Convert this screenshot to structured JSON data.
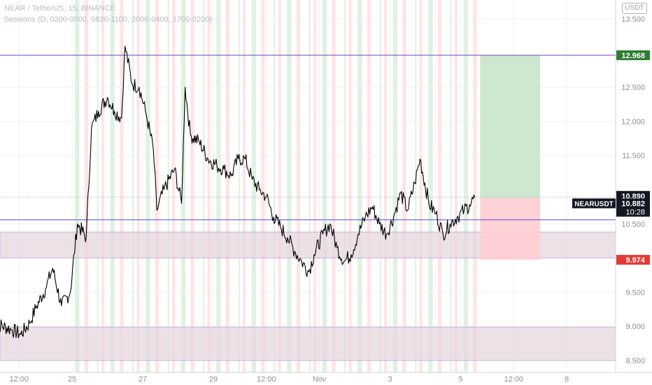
{
  "header": {
    "symbol_line": "NEAR / TetherUS, 15, BINANCE",
    "sessions_line": "Sessions (D, 0200-0500, 0830-1100, 2000-0400, 1700-0200)"
  },
  "currency_button": "USDT",
  "colors": {
    "candle": "#000000",
    "level_line": "#7e57c2",
    "zone_fill": "#e8d7e0",
    "profit_fill": "#c8e6c9",
    "loss_fill": "#ffcdd2",
    "target_tag": "#2e7d32",
    "stop_tag": "#e53935",
    "session_green": "#c8e6c9",
    "session_red": "#ffcdd2",
    "grid": "#eef0f3"
  },
  "chart_data": {
    "type": "line",
    "title": "NEAR / TetherUS, 15, BINANCE",
    "x_range_days": [
      -0.2,
      14.0
    ],
    "ylim": [
      8.38,
      13.6
    ],
    "y_scale": "linear",
    "grid": true,
    "x_tick_labels": [
      {
        "day": 0.5,
        "label": "12:00"
      },
      {
        "day": 2,
        "label": "25"
      },
      {
        "day": 4,
        "label": "27"
      },
      {
        "day": 6,
        "label": "29"
      },
      {
        "day": 7.5,
        "label": "12:00"
      },
      {
        "day": 9,
        "label": "Nov"
      },
      {
        "day": 11,
        "label": "3"
      },
      {
        "day": 13,
        "label": "5"
      },
      {
        "day": 14.5,
        "label": "12:00"
      },
      {
        "day": 16,
        "label": "8"
      }
    ],
    "y_ticks": [
      13.5,
      12.5,
      12.0,
      11.5,
      10.5,
      9.5,
      9.0,
      8.5
    ],
    "y_tick_labels": [
      "13.500",
      "12.500",
      "12.000",
      "11.500",
      "10.500",
      "9.500",
      "9.000",
      "8.500"
    ],
    "price_path": [
      [
        -0.2,
        9.05
      ],
      [
        0.3,
        8.95
      ],
      [
        0.55,
        8.88
      ],
      [
        0.8,
        9.05
      ],
      [
        1.0,
        9.3
      ],
      [
        1.25,
        9.55
      ],
      [
        1.45,
        9.85
      ],
      [
        1.7,
        9.3
      ],
      [
        1.95,
        9.5
      ],
      [
        2.15,
        10.5
      ],
      [
        2.4,
        10.3
      ],
      [
        2.55,
        11.9
      ],
      [
        2.75,
        12.15
      ],
      [
        3.0,
        12.35
      ],
      [
        3.2,
        12.15
      ],
      [
        3.4,
        12.05
      ],
      [
        3.5,
        13.1
      ],
      [
        3.7,
        12.55
      ],
      [
        3.9,
        12.5
      ],
      [
        4.1,
        12.1
      ],
      [
        4.3,
        11.6
      ],
      [
        4.4,
        10.7
      ],
      [
        4.6,
        11.0
      ],
      [
        4.9,
        11.3
      ],
      [
        5.1,
        10.8
      ],
      [
        5.2,
        12.5
      ],
      [
        5.35,
        11.8
      ],
      [
        5.6,
        11.7
      ],
      [
        5.85,
        11.45
      ],
      [
        6.1,
        11.35
      ],
      [
        6.3,
        11.3
      ],
      [
        6.5,
        11.2
      ],
      [
        6.7,
        11.45
      ],
      [
        6.9,
        11.45
      ],
      [
        7.1,
        11.15
      ],
      [
        7.3,
        11.0
      ],
      [
        7.5,
        10.9
      ],
      [
        7.7,
        10.6
      ],
      [
        7.9,
        10.45
      ],
      [
        8.1,
        10.3
      ],
      [
        8.3,
        10.1
      ],
      [
        8.5,
        9.95
      ],
      [
        8.7,
        9.8
      ],
      [
        8.85,
        10.05
      ],
      [
        9.1,
        10.35
      ],
      [
        9.3,
        10.5
      ],
      [
        9.5,
        10.15
      ],
      [
        9.7,
        9.95
      ],
      [
        9.9,
        10.05
      ],
      [
        10.1,
        10.35
      ],
      [
        10.3,
        10.6
      ],
      [
        10.5,
        10.75
      ],
      [
        10.7,
        10.5
      ],
      [
        10.9,
        10.35
      ],
      [
        11.1,
        10.6
      ],
      [
        11.3,
        10.95
      ],
      [
        11.5,
        10.7
      ],
      [
        11.7,
        11.1
      ],
      [
        11.85,
        11.45
      ],
      [
        12.1,
        10.8
      ],
      [
        12.3,
        10.65
      ],
      [
        12.5,
        10.35
      ],
      [
        12.7,
        10.5
      ],
      [
        12.9,
        10.6
      ],
      [
        13.1,
        10.7
      ],
      [
        13.25,
        10.78
      ],
      [
        13.4,
        10.882
      ]
    ],
    "horizontal_levels": [
      12.968,
      10.56
    ],
    "zones": [
      [
        10.0,
        10.38
      ],
      [
        8.5,
        8.99
      ]
    ],
    "position": {
      "entry": 10.882,
      "target": 12.968,
      "stop": 9.974,
      "x_range_days": [
        13.55,
        15.25
      ]
    },
    "price_labels": {
      "target": "12.968",
      "high": "10.890",
      "last_price": "10.882",
      "countdown": "10:28",
      "stop": "9.974",
      "symbol_tag": "NEARUSDT"
    },
    "sessions": {
      "period_days": 1,
      "bands": [
        {
          "offset": 0.083,
          "width": 0.125,
          "color": "#c8e6c9"
        },
        {
          "offset": 0.354,
          "width": 0.104,
          "color": "#ffcdd2"
        },
        {
          "offset": 0.833,
          "width": 0.08,
          "color": "#ffcdd2"
        },
        {
          "offset": 0.708,
          "width": 0.04,
          "color": "#c8e6c9"
        }
      ],
      "visible_from_day": 1.9,
      "visible_to_day": 13.6
    }
  }
}
